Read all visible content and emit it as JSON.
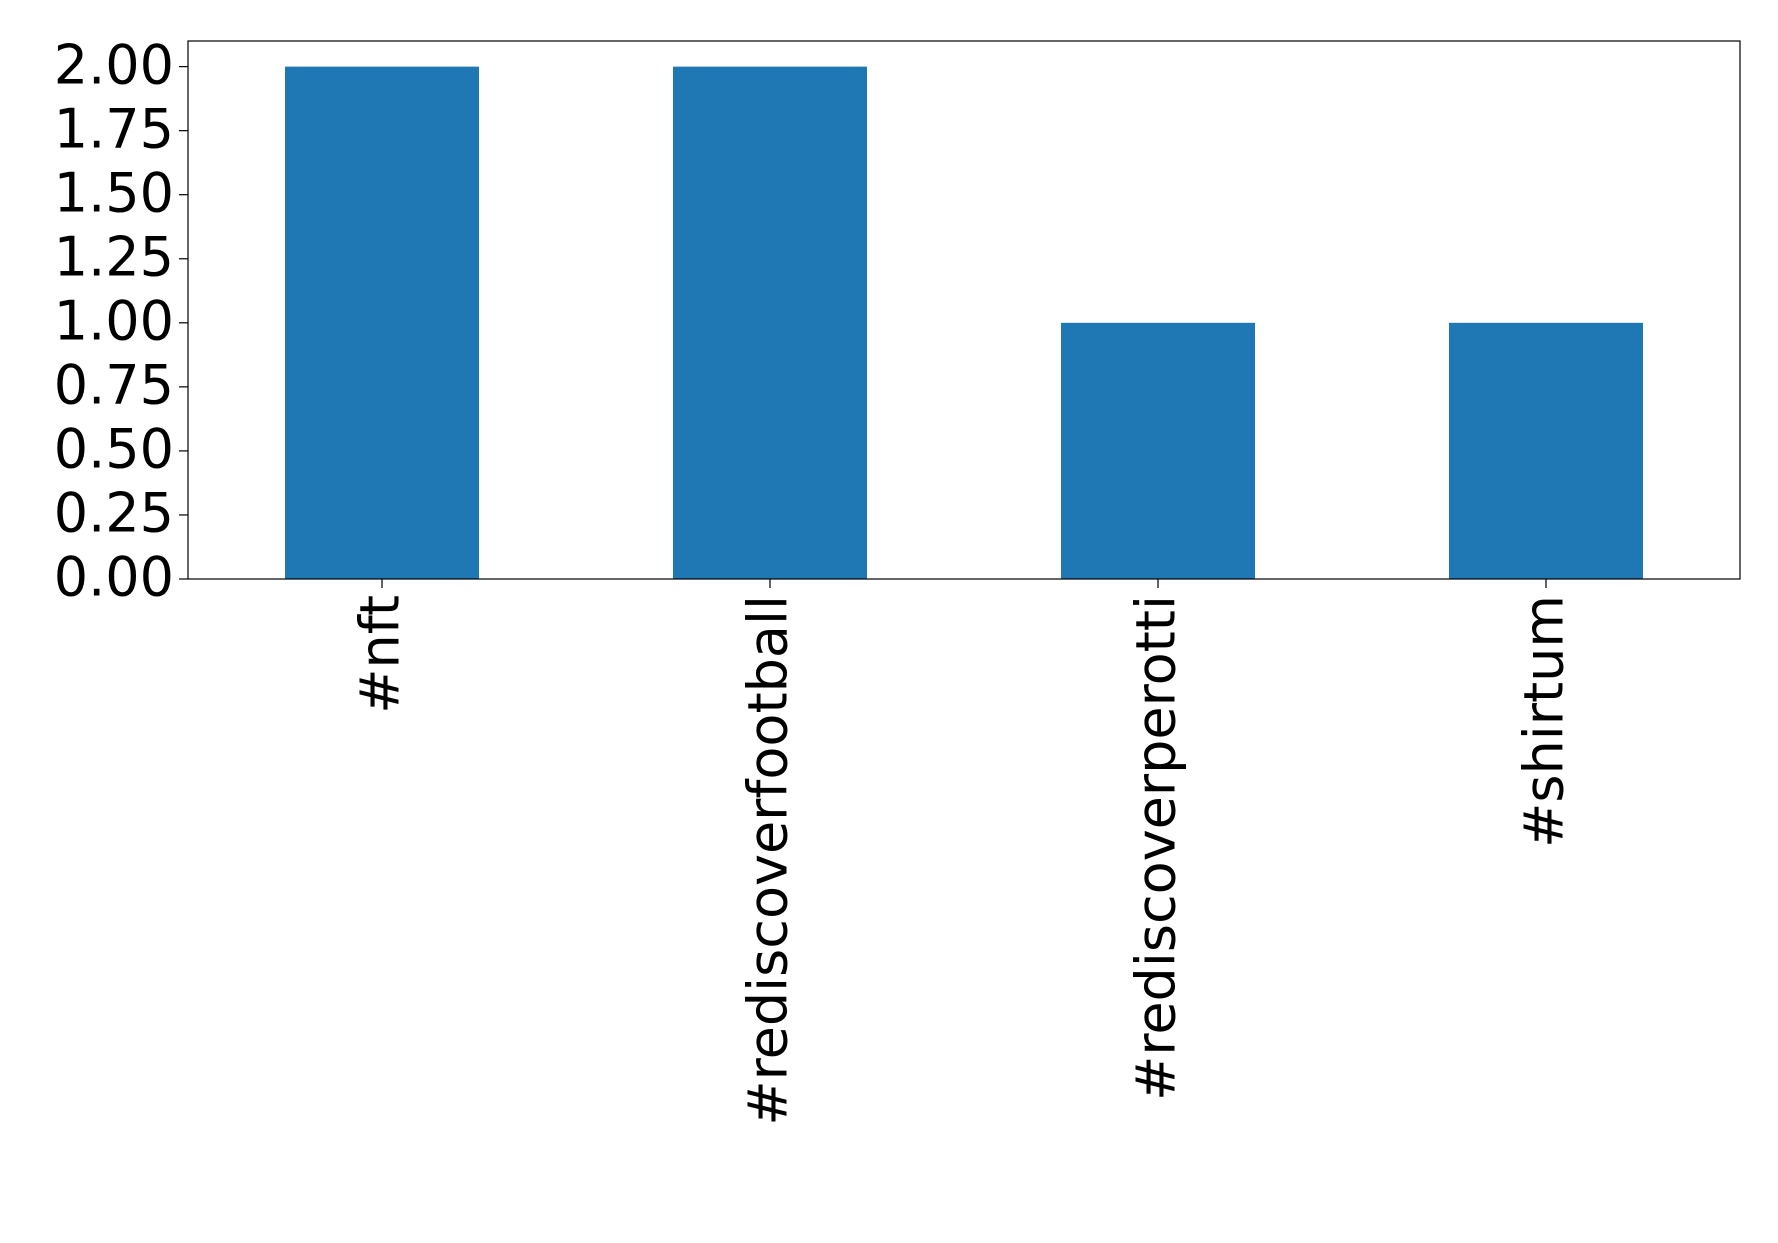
{
  "chart_data": {
    "type": "bar",
    "categories": [
      "#nft",
      "#rediscoverfootball",
      "#rediscoverperotti",
      "#shirtum"
    ],
    "values": [
      2,
      2,
      1,
      1
    ],
    "color": "#1f77b4",
    "ylim": [
      0,
      2.1
    ],
    "yticks": [
      {
        "value": 0,
        "label": "0.00"
      },
      {
        "value": 0.25,
        "label": "0.25"
      },
      {
        "value": 0.5,
        "label": "0.50"
      },
      {
        "value": 0.75,
        "label": "0.75"
      },
      {
        "value": 1,
        "label": "1.00"
      },
      {
        "value": 1.25,
        "label": "1.25"
      },
      {
        "value": 1.5,
        "label": "1.50"
      },
      {
        "value": 1.75,
        "label": "1.75"
      },
      {
        "value": 2,
        "label": "2.00"
      }
    ],
    "grid": false
  }
}
